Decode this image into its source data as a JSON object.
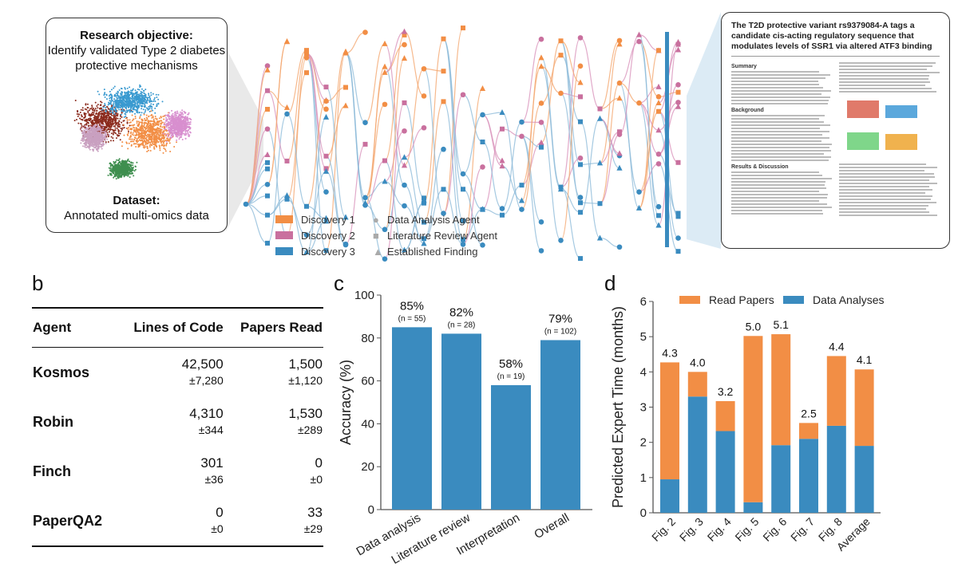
{
  "panel_a": {
    "objective_title": "Research objective:",
    "objective_text": "Identify validated Type 2 diabetes protective mechanisms",
    "dataset_title": "Dataset:",
    "dataset_text": "Annotated multi-omics data",
    "legend": {
      "discoveries": [
        {
          "label": "Discovery 1",
          "color": "#f28e45"
        },
        {
          "label": "Discovery 2",
          "color": "#c9709e"
        },
        {
          "label": "Discovery 3",
          "color": "#3a8bbf"
        }
      ],
      "agents": [
        {
          "label": "Data Analysis Agent",
          "icon": "circle-icon"
        },
        {
          "label": "Literature Review Agent",
          "icon": "square-icon"
        },
        {
          "label": "Established Finding",
          "icon": "triangle-icon"
        }
      ]
    },
    "report": {
      "title": "The T2D protective variant rs9379084-A tags a candidate cis-acting regulatory sequence that modulates levels of SSR1 via altered ATF3 binding",
      "sections": [
        "Summary",
        "Background",
        "Results & Discussion"
      ]
    }
  },
  "panel_labels": {
    "b": "b",
    "c": "c",
    "d": "d"
  },
  "table": {
    "headers": [
      "Agent",
      "Lines of Code",
      "Papers Read"
    ],
    "rows": [
      {
        "agent": "Kosmos",
        "loc": "42,500",
        "loc_sd": "±7,280",
        "papers": "1,500",
        "papers_sd": "±1,120"
      },
      {
        "agent": "Robin",
        "loc": "4,310",
        "loc_sd": "±344",
        "papers": "1,530",
        "papers_sd": "±289"
      },
      {
        "agent": "Finch",
        "loc": "301",
        "loc_sd": "±36",
        "papers": "0",
        "papers_sd": "±0"
      },
      {
        "agent": "PaperQA2",
        "loc": "0",
        "loc_sd": "±0",
        "papers": "33",
        "papers_sd": "±29"
      }
    ]
  },
  "chart_data": [
    {
      "type": "bar",
      "ylabel": "Accuracy (%)",
      "ylim": [
        0,
        100
      ],
      "yticks": [
        0,
        20,
        40,
        60,
        80,
        100
      ],
      "categories": [
        "Data analysis",
        "Literature review",
        "Interpretation",
        "Overall"
      ],
      "values": [
        85,
        82,
        58,
        79
      ],
      "data_labels": [
        "85%",
        "82%",
        "58%",
        "79%"
      ],
      "n_labels": [
        "(n = 55)",
        "(n = 28)",
        "(n = 19)",
        "(n = 102)"
      ],
      "color": "#3a8bbf"
    },
    {
      "type": "bar",
      "stacked": true,
      "ylabel": "Predicted Expert Time (months)",
      "ylim": [
        0,
        6
      ],
      "yticks": [
        0,
        1,
        2,
        3,
        4,
        5,
        6
      ],
      "categories": [
        "Fig. 2",
        "Fig. 3",
        "Fig. 4",
        "Fig. 5",
        "Fig. 6",
        "Fig. 7",
        "Fig. 8",
        "Average"
      ],
      "legend_position": "top",
      "series": [
        {
          "name": "Data Analyses",
          "color": "#3a8bbf",
          "values": [
            0.95,
            3.3,
            2.32,
            0.3,
            1.92,
            2.1,
            2.47,
            1.9
          ]
        },
        {
          "name": "Read Papers",
          "color": "#f28e45",
          "values": [
            3.32,
            0.7,
            0.85,
            4.72,
            3.15,
            0.45,
            1.98,
            2.17
          ]
        }
      ],
      "totals_labels": [
        "4.3",
        "4.0",
        "3.2",
        "5.0",
        "5.1",
        "2.5",
        "4.4",
        "4.1"
      ]
    }
  ]
}
